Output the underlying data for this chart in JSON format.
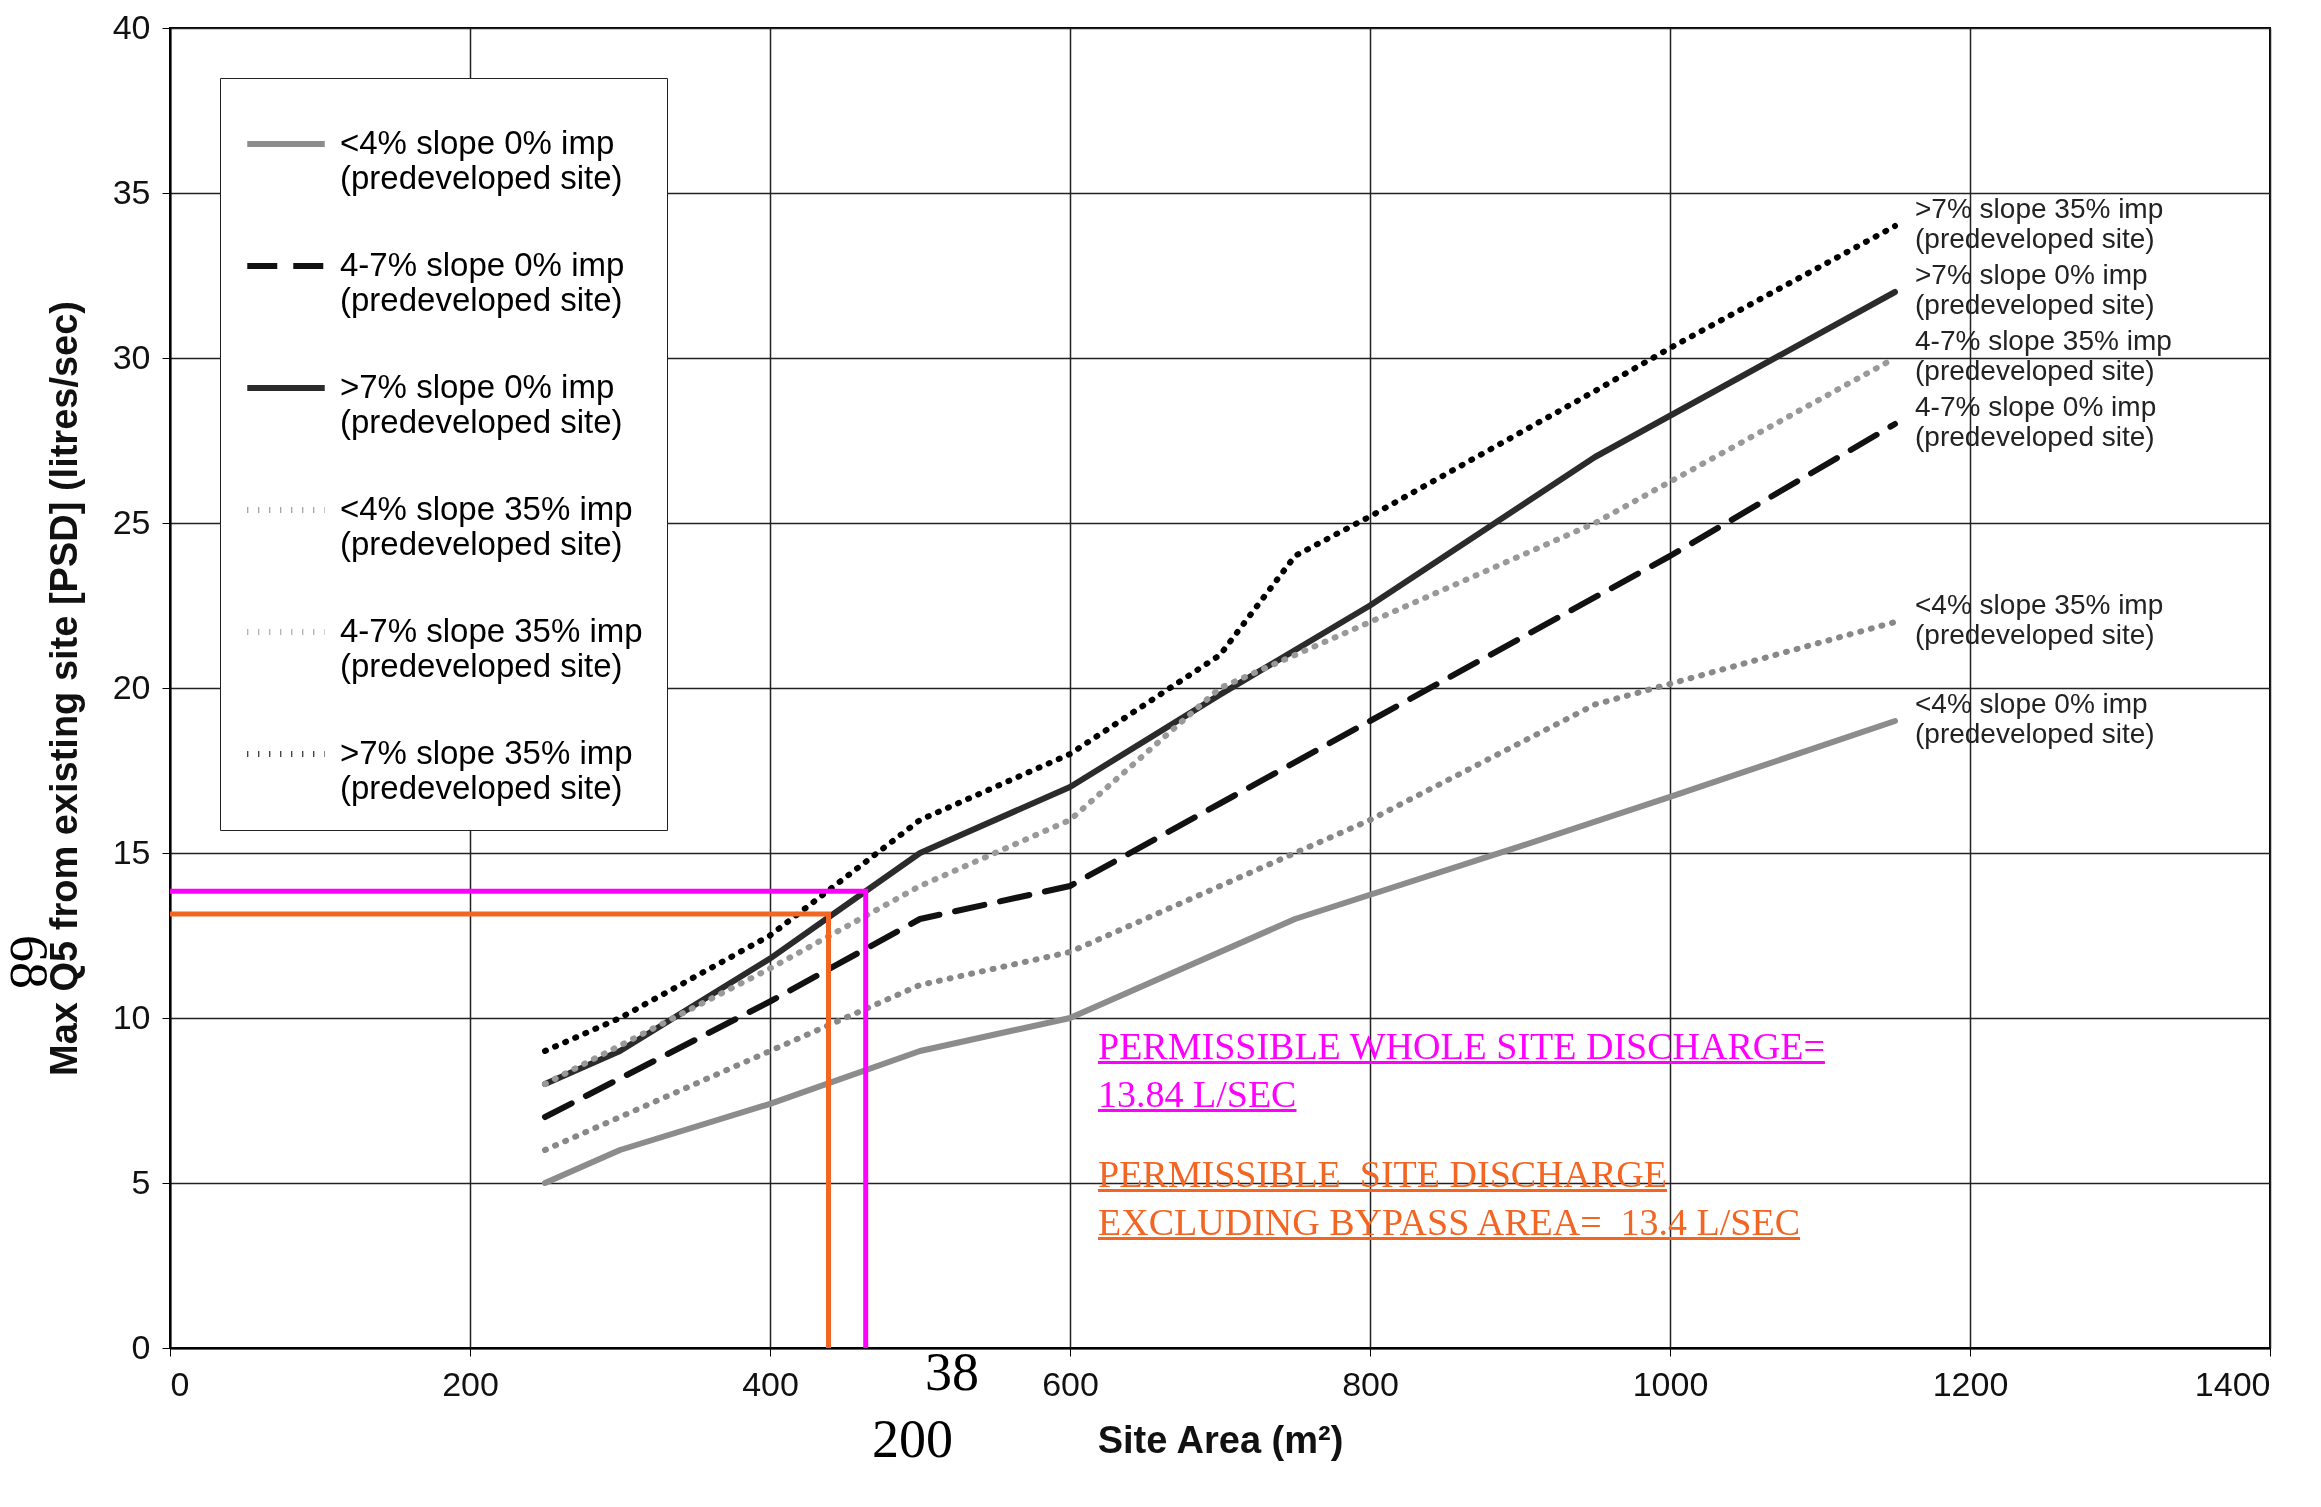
{
  "chart_data": {
    "type": "line",
    "xlabel": "Site Area (m²)",
    "ylabel": "Max Q5 from existing site [PSD] (litres/sec)",
    "xlim": [
      0,
      1400
    ],
    "xticks": [
      0,
      200,
      400,
      600,
      800,
      1000,
      1200,
      1400
    ],
    "ylim": [
      0,
      40
    ],
    "yticks": [
      0,
      5,
      10,
      15,
      20,
      25,
      30,
      35,
      40
    ],
    "grid": true,
    "legend": "top left",
    "series": [
      {
        "name": "<4% slope 0% imp\n(predeveloped site)",
        "color": "#8c8c8c",
        "line_style": "solid",
        "x": [
          250,
          300,
          400,
          500,
          600,
          750,
          900,
          1000,
          1150
        ],
        "values": [
          5,
          6,
          7.4,
          9,
          10,
          13,
          15.2,
          16.7,
          19
        ]
      },
      {
        "name": "4-7% slope 0% imp\n(predeveloped site)",
        "color": "#111111",
        "line_style": "dashed",
        "x": [
          250,
          400,
          500,
          600,
          700,
          800,
          900,
          1000,
          1150
        ],
        "values": [
          7,
          10.5,
          13,
          14,
          16.5,
          19,
          21.5,
          24,
          28
        ]
      },
      {
        "name": ">7% slope 0% imp\n(predeveloped site)",
        "color": "#2b2b2b",
        "line_style": "solid",
        "x": [
          250,
          300,
          400,
          450,
          500,
          600,
          700,
          800,
          950,
          1150
        ],
        "values": [
          8,
          9,
          11.8,
          13.4,
          15,
          17,
          19.8,
          22.5,
          27,
          32
        ]
      },
      {
        "name": "<4% slope 35% imp\n(predeveloped site)",
        "color": "#888888",
        "line_style": "dotted",
        "x": [
          250,
          400,
          500,
          600,
          700,
          800,
          950,
          1150
        ],
        "values": [
          6,
          9,
          11,
          12,
          14,
          16,
          19.5,
          22
        ]
      },
      {
        "name": "4-7% slope 35% imp\n(predeveloped site)",
        "color": "#999999",
        "line_style": "dotted",
        "x": [
          250,
          400,
          500,
          600,
          700,
          800,
          950,
          1150
        ],
        "values": [
          8,
          11.5,
          14,
          16,
          20,
          22,
          25,
          30
        ]
      },
      {
        "name": ">7% slope 35% imp\n(predeveloped site)",
        "color": "#000000",
        "line_style": "dotted",
        "x": [
          250,
          300,
          400,
          500,
          600,
          700,
          750,
          800,
          950,
          1000,
          1150
        ],
        "values": [
          9,
          10,
          12.5,
          16,
          18,
          21,
          24,
          25.2,
          29,
          30.3,
          34
        ]
      },
      {
        "color": "#ff00ff",
        "line_style": "solid",
        "x": [
          0,
          463.8,
          463.8
        ],
        "values": [
          13.84,
          13.84,
          0
        ]
      },
      {
        "color": "#f26522",
        "line_style": "solid",
        "x": [
          0,
          439,
          439
        ],
        "values": [
          13.15,
          13.15,
          0
        ]
      }
    ],
    "annotations": [
      "PERMISSIBLE WHOLE SITE DISCHARGE=\n13.84 L/SEC",
      "PERMISSIBLE  SITE DISCHARGE\nEXCLUDING BYPASS AREA=  13.4 L/SEC",
      "38",
      "200",
      "68"
    ]
  }
}
